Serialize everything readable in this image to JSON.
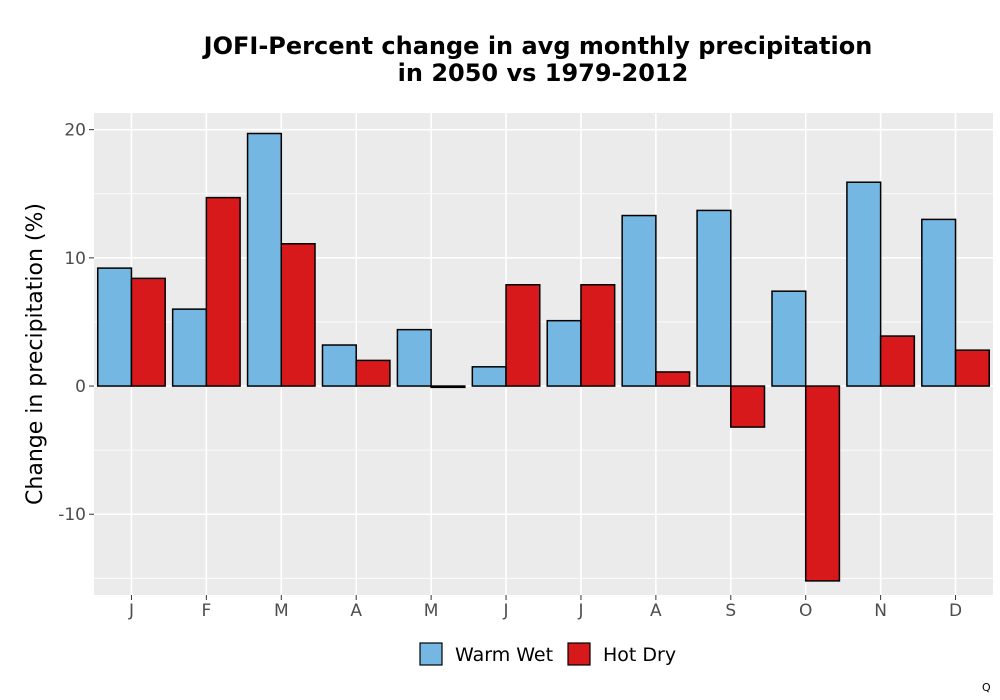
{
  "chart_data": {
    "type": "bar",
    "title_lines": [
      "JOFI-Percent change in avg monthly precipitation",
      "in 2050 vs 1979-2012"
    ],
    "xlabel": "",
    "ylabel": "Change in precipitation (%)",
    "categories": [
      "J",
      "F",
      "M",
      "A",
      "M",
      "J",
      "J",
      "A",
      "S",
      "O",
      "N",
      "D"
    ],
    "series": [
      {
        "name": "Warm Wet",
        "color": "#74b7e2",
        "values": [
          9.2,
          6.0,
          19.7,
          3.2,
          4.4,
          1.5,
          5.1,
          13.3,
          13.7,
          7.4,
          15.9,
          13.0
        ]
      },
      {
        "name": "Hot Dry",
        "color": "#d7191c",
        "values": [
          8.4,
          14.7,
          11.1,
          2.0,
          -0.1,
          7.9,
          7.9,
          1.1,
          -3.2,
          -15.2,
          3.9,
          2.8
        ]
      }
    ],
    "ylim": [
      -16.3,
      21.3
    ],
    "yticks": [
      -10,
      0,
      10,
      20
    ],
    "ytick_labels": [
      "-10",
      "0",
      "10",
      "20"
    ],
    "grid": true,
    "legend_position": "bottom",
    "watermark": "Q"
  }
}
